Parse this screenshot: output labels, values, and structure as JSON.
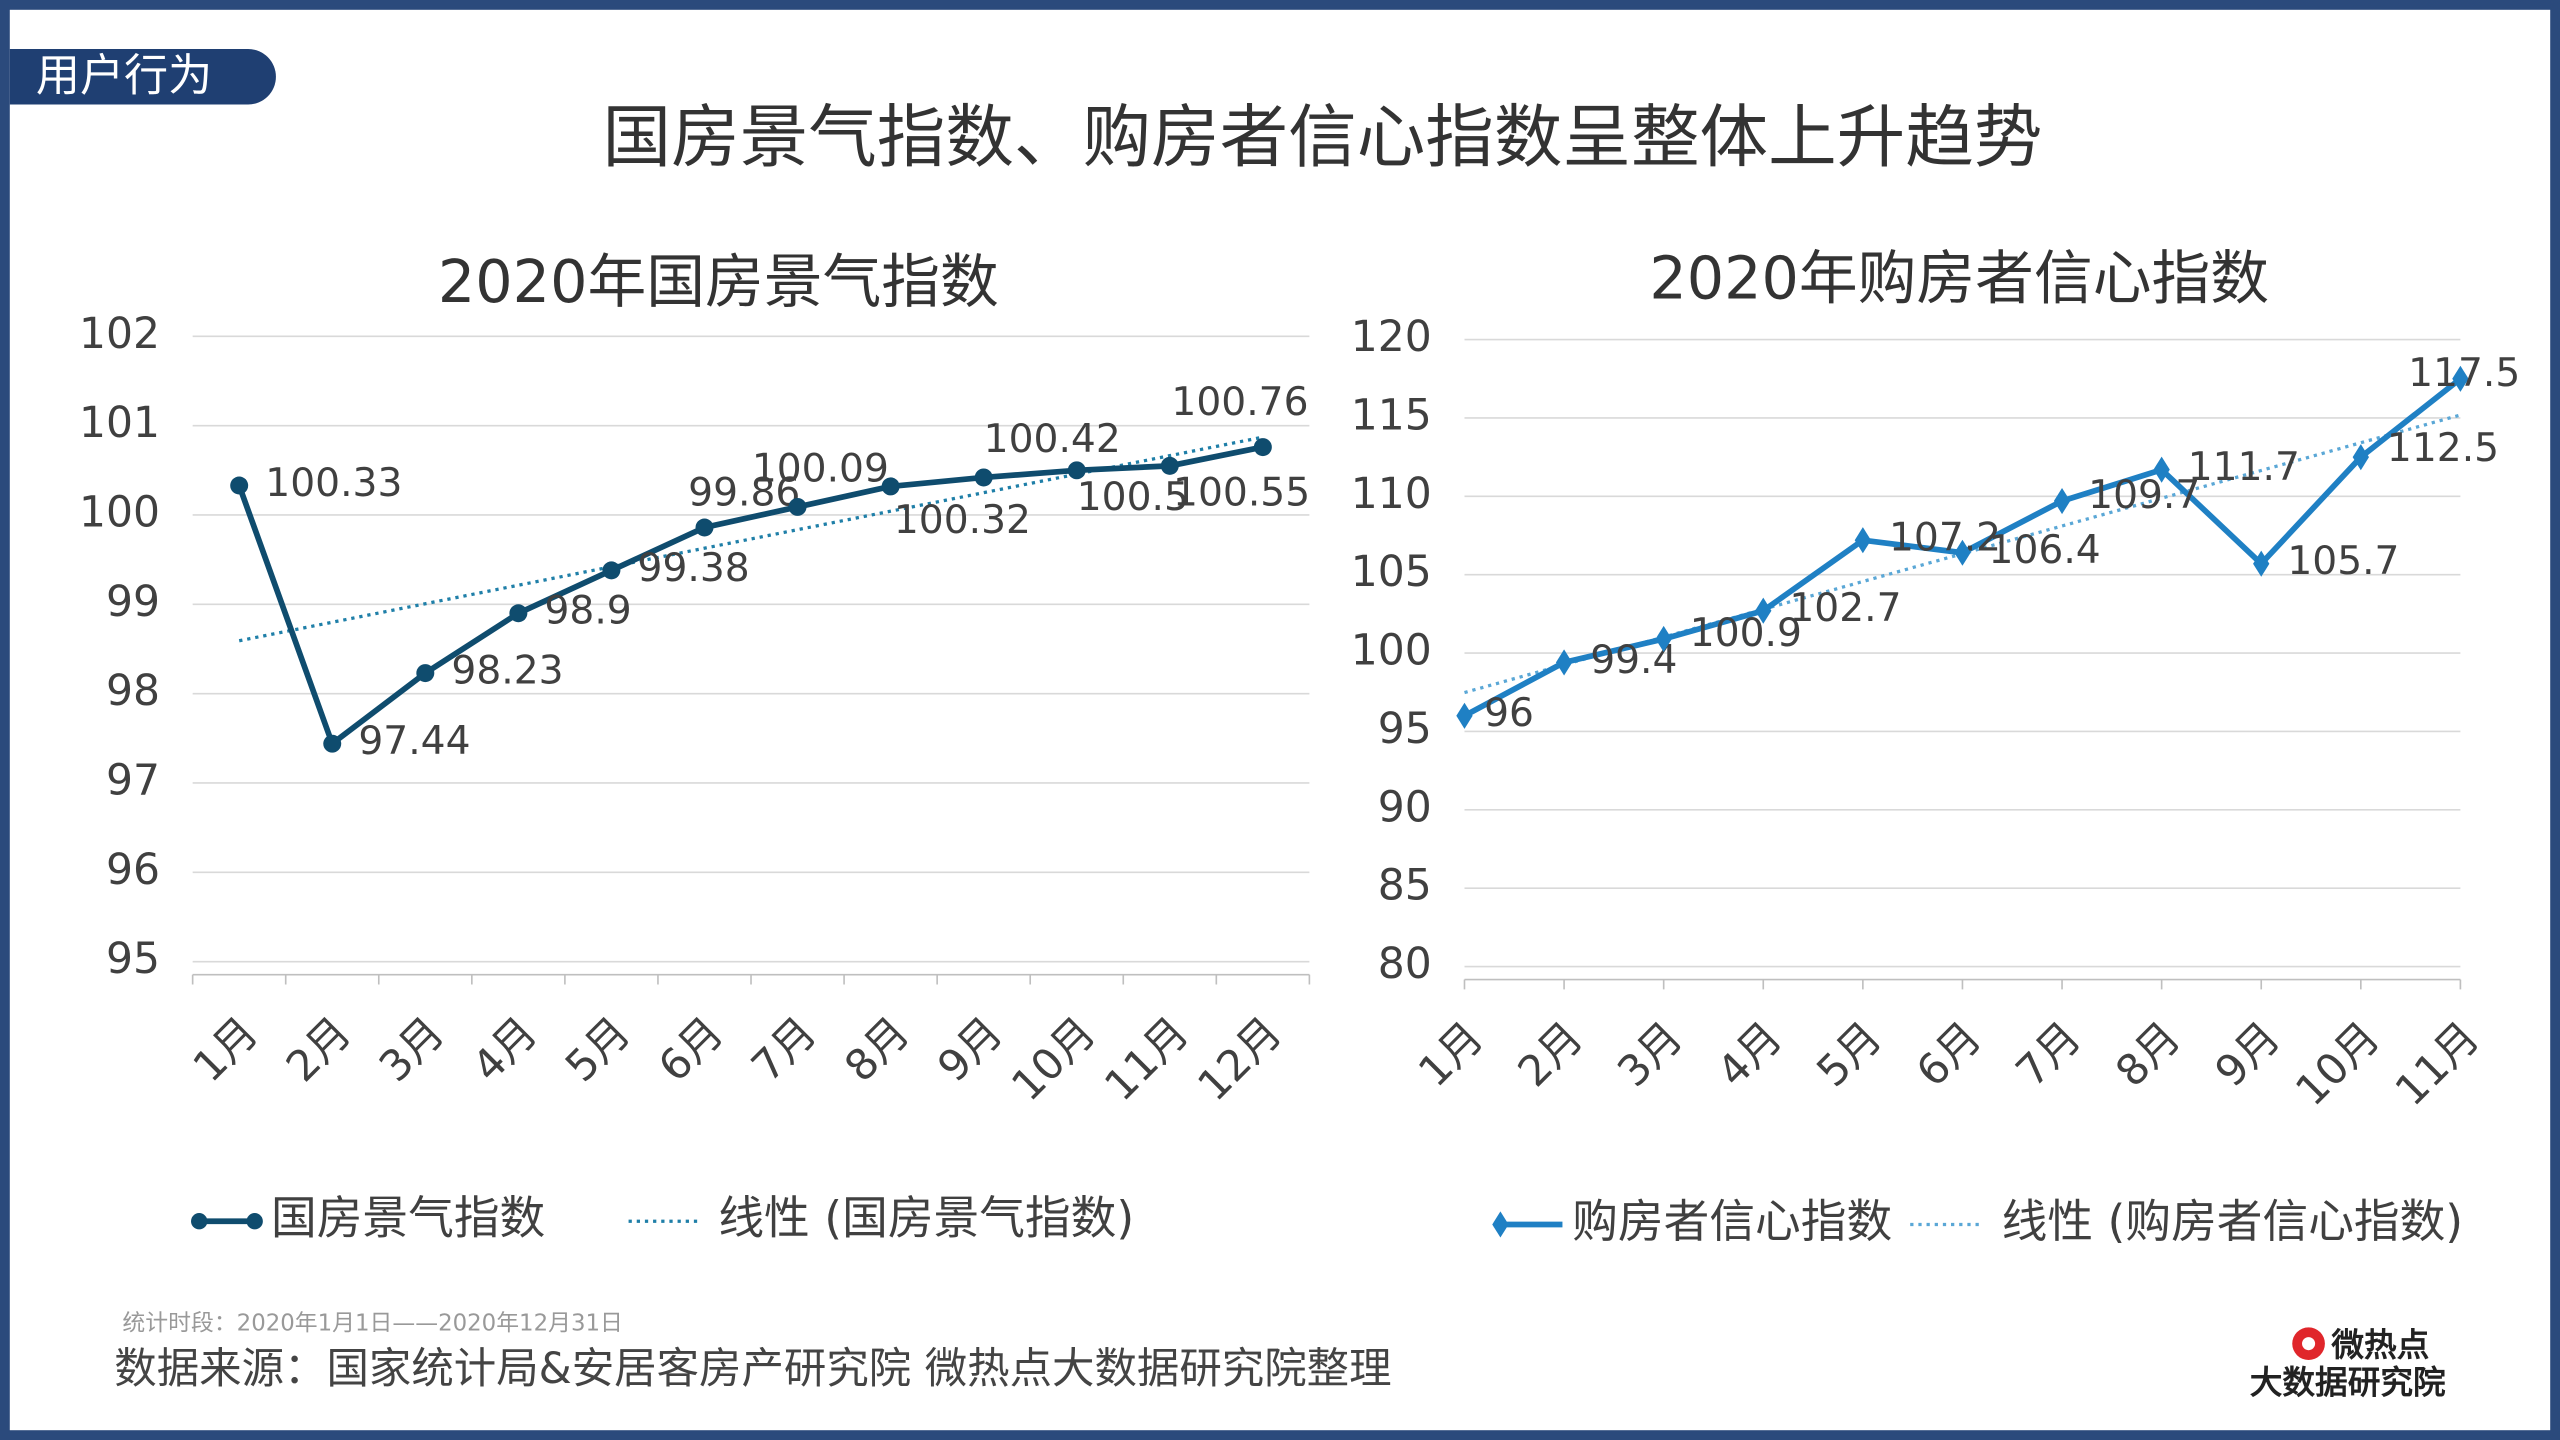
{
  "header": {
    "tag": "用户行为",
    "title": "国房景气指数、购房者信心指数呈整体上升趋势"
  },
  "chart_data": [
    {
      "type": "line",
      "title": "2020年国房景气指数",
      "categories": [
        "1月",
        "2月",
        "3月",
        "4月",
        "5月",
        "6月",
        "7月",
        "8月",
        "9月",
        "10月",
        "11月",
        "12月"
      ],
      "series": [
        {
          "name": "国房景气指数",
          "color": "#0f4c6e",
          "values": [
            100.33,
            97.44,
            98.23,
            98.9,
            99.38,
            99.86,
            100.09,
            100.32,
            100.42,
            100.5,
            100.55,
            100.76
          ]
        }
      ],
      "trendline": {
        "name": "线性 (国房景气指数)",
        "color": "#1f7fa8"
      },
      "ylim": [
        95,
        102
      ],
      "yticks": [
        95,
        96,
        97,
        98,
        99,
        100,
        101,
        102
      ],
      "grid": true
    },
    {
      "type": "line",
      "title": "2020年购房者信心指数",
      "categories": [
        "1月",
        "2月",
        "3月",
        "4月",
        "5月",
        "6月",
        "7月",
        "8月",
        "9月",
        "10月",
        "11月"
      ],
      "series": [
        {
          "name": "购房者信心指数",
          "color": "#1f80c4",
          "values": [
            96,
            99.4,
            100.9,
            102.7,
            107.2,
            106.4,
            109.7,
            111.7,
            105.7,
            112.5,
            117.5
          ]
        }
      ],
      "trendline": {
        "name": "线性 (购房者信心指数)",
        "color": "#5aa7d6"
      },
      "ylim": [
        80,
        120
      ],
      "yticks": [
        80,
        85,
        90,
        95,
        100,
        105,
        110,
        115,
        120
      ],
      "grid": true
    }
  ],
  "footer": {
    "period": "统计时段：2020年1月1日——2020年12月31日",
    "source": "数据来源：国家统计局&安居客房产研究院  微热点大数据研究院整理"
  },
  "logo": {
    "line1": "微热点",
    "line2": "大数据研究院"
  }
}
